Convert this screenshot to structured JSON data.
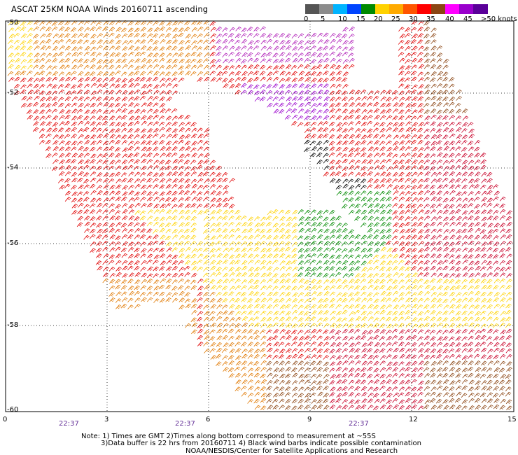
{
  "title": "ASCAT 25KM NOAA Winds 20160711 ascending",
  "legend": {
    "labels": [
      "0",
      "5",
      "10",
      "15",
      "20",
      "25",
      "30",
      "35",
      "40",
      "45",
      ">50 knots"
    ],
    "colors": [
      "#555555",
      "#8c8c8c",
      "#00b4ff",
      "#0044ff",
      "#008a00",
      "#ffd200",
      "#ffaa00",
      "#ff5500",
      "#ff0000",
      "#8b4513",
      "#ff00ff",
      "#9900cc",
      "#5a0099"
    ]
  },
  "axes": {
    "lon_labels": [
      "0",
      "3",
      "6",
      "9",
      "12",
      "15"
    ],
    "lat_labels": [
      "-50",
      "-52",
      "-54",
      "-56",
      "-58",
      "-60"
    ]
  },
  "time_labels": [
    "22:37",
    "22:37",
    "22:37"
  ],
  "notes": {
    "line1": "Note: 1) Times are GMT 2)Times along bottom correspond to measurement at ~55S",
    "line2": "3)Data buffer is 22 hrs from 20160711 4) Black wind barbs indicate possible contamination",
    "line3": "NOAA/NESDIS/Center for Satellite Applications and Research"
  },
  "wind_colors": {
    "black": "#000000",
    "green": "#008a00",
    "yellow": "#ffd200",
    "orange": "#e07800",
    "redorange": "#e84a10",
    "red": "#e00000",
    "crimson": "#c80028",
    "brown": "#8b4513",
    "purple": "#b020b8",
    "violet": "#9900cc"
  }
}
